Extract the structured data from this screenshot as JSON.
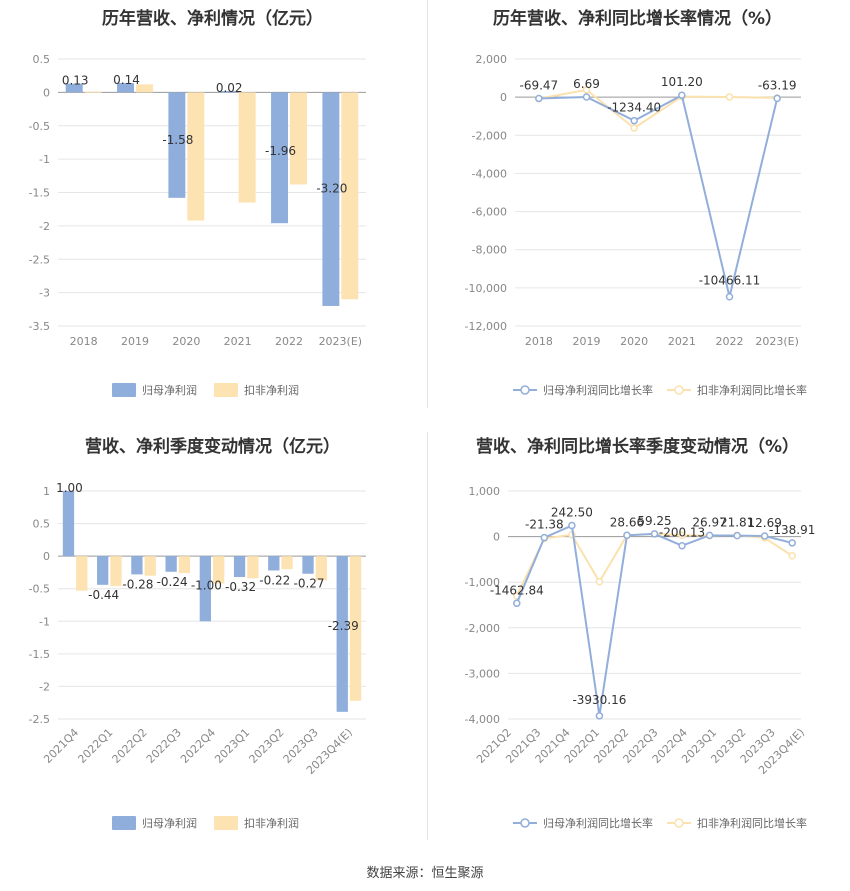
{
  "colors": {
    "series1": "#8FAEDC",
    "series1_line": "#92AEDB",
    "series2": "#FDE2B2",
    "series2_line": "#FBE1AD",
    "grid": "#E6E6E6",
    "axis_text": "#888888",
    "label_text": "#333333"
  },
  "source": "数据来源：恒生聚源",
  "chart_data": [
    {
      "id": "c1",
      "type": "bar",
      "title": "历年营收、净利情况（亿元）",
      "categories": [
        "2018",
        "2019",
        "2020",
        "2021",
        "2022",
        "2023(E)"
      ],
      "series": [
        {
          "name": "归母净利润",
          "values": [
            0.13,
            0.14,
            -1.58,
            0.02,
            -1.96,
            -3.2
          ],
          "labels": [
            "0.13",
            "0.14",
            "-1.58",
            "0.02",
            "-1.96",
            "-3.20"
          ]
        },
        {
          "name": "扣非净利润",
          "values": [
            0.01,
            0.12,
            -1.92,
            -1.65,
            -1.38,
            -3.1
          ]
        }
      ],
      "yticks": [
        "0.5",
        "0",
        "-0.5",
        "-1",
        "-1.5",
        "-2",
        "-2.5",
        "-3",
        "-3.5"
      ],
      "ylim": [
        -3.5,
        0.5
      ],
      "grid": true,
      "legend": "bottom"
    },
    {
      "id": "c2",
      "type": "line",
      "title": "历年营收、净利同比增长率情况（%）",
      "categories": [
        "2018",
        "2019",
        "2020",
        "2021",
        "2022",
        "2023(E)"
      ],
      "series": [
        {
          "name": "归母净利润同比增长率",
          "values": [
            -69.47,
            6.69,
            -1234.4,
            101.2,
            -10466.11,
            -63.19
          ],
          "labels": [
            "-69.47",
            "6.69",
            "-1234.40",
            "101.20",
            "-10466.11",
            "-63.19"
          ]
        },
        {
          "name": "扣非净利润同比增长率",
          "values": [
            -80,
            380,
            -1620,
            30,
            10,
            -40
          ]
        }
      ],
      "yticks": [
        "2,000",
        "0",
        "-2,000",
        "-4,000",
        "-6,000",
        "-8,000",
        "-10,000",
        "-12,000"
      ],
      "ylim": [
        -12000,
        2000
      ],
      "grid": true,
      "legend": "bottom"
    },
    {
      "id": "c3",
      "type": "bar",
      "title": "营收、净利季度变动情况（亿元）",
      "categories": [
        "2021Q4",
        "2022Q1",
        "2022Q2",
        "2022Q3",
        "2022Q4",
        "2023Q1",
        "2023Q2",
        "2023Q3",
        "2023Q4(E)"
      ],
      "series": [
        {
          "name": "归母净利润",
          "values": [
            1.0,
            -0.44,
            -0.28,
            -0.24,
            -1.0,
            -0.32,
            -0.22,
            -0.27,
            -2.39
          ],
          "labels": [
            "1.00",
            "-0.44",
            "-0.28",
            "-0.24",
            "-1.00",
            "-0.32",
            "-0.22",
            "-0.27",
            "-2.39"
          ]
        },
        {
          "name": "扣非净利润",
          "values": [
            -0.53,
            -0.46,
            -0.3,
            -0.26,
            -0.42,
            -0.34,
            -0.2,
            -0.37,
            -2.22
          ]
        }
      ],
      "yticks": [
        "1",
        "0.5",
        "0",
        "-0.5",
        "-1",
        "-1.5",
        "-2",
        "-2.5"
      ],
      "ylim": [
        -2.5,
        1
      ],
      "grid": true,
      "legend": "bottom"
    },
    {
      "id": "c4",
      "type": "line",
      "title": "营收、净利同比增长率季度变动情况（%）",
      "categories": [
        "2021Q2",
        "2021Q3",
        "2021Q4",
        "2022Q1",
        "2022Q2",
        "2022Q3",
        "2022Q4",
        "2023Q1",
        "2023Q2",
        "2023Q3",
        "2023Q4(E)"
      ],
      "series": [
        {
          "name": "归母净利润同比增长率",
          "values": [
            -1462.84,
            -21.38,
            242.5,
            -3930.16,
            28.66,
            59.25,
            -200.13,
            26.97,
            21.81,
            12.69,
            -138.91
          ],
          "labels": [
            "-1462.84",
            "-21.38",
            "242.50",
            "-3930.16",
            "28.66",
            "59.25",
            "-200.13",
            "26.97",
            "21.81",
            "12.69",
            "-138.91"
          ]
        },
        {
          "name": "扣非净利润同比增长率",
          "values": [
            -1300,
            -40,
            40,
            -990,
            30,
            60,
            30,
            20,
            30,
            -30,
            -420
          ]
        }
      ],
      "yticks": [
        "1,000",
        "0",
        "-1,000",
        "-2,000",
        "-3,000",
        "-4,000"
      ],
      "ylim": [
        -4000,
        1000
      ],
      "grid": true,
      "legend": "bottom"
    }
  ]
}
